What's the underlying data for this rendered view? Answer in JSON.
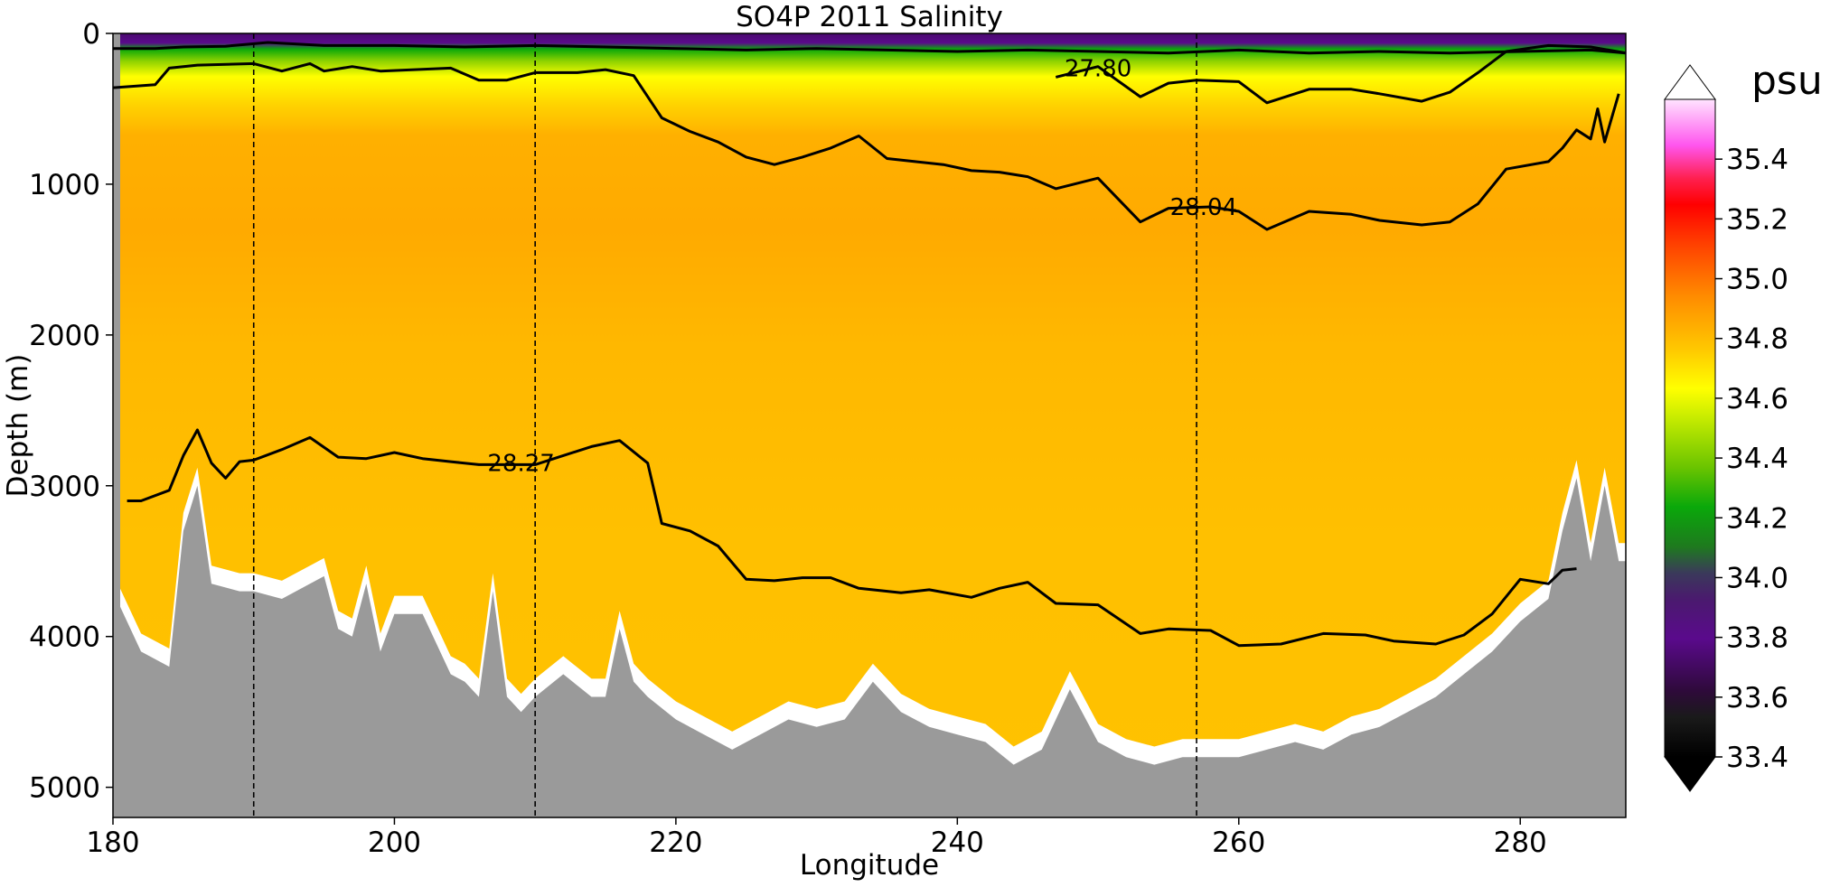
{
  "chart_data": {
    "type": "heatmap",
    "title": "SO4P 2011 Salinity",
    "xlabel": "Longitude",
    "ylabel": "Depth (m)",
    "xlim": [
      180,
      287.5
    ],
    "ylim": [
      5200,
      0
    ],
    "xticks": [
      180,
      200,
      220,
      240,
      260,
      280
    ],
    "yticks": [
      0,
      1000,
      2000,
      3000,
      4000,
      5000
    ],
    "yaxis_inverted": true,
    "variable": "salinity",
    "colorbar": {
      "label": "psu",
      "min": 33.4,
      "max": 35.6,
      "extend": "both",
      "ticks": [
        33.4,
        33.6,
        33.8,
        34.0,
        34.2,
        34.4,
        34.6,
        34.8,
        35.0,
        35.2,
        35.4
      ],
      "tick_labels": [
        "33.4",
        "33.6",
        "33.8",
        "34.0",
        "34.2",
        "34.4",
        "34.6",
        "34.8",
        "35.0",
        "35.2",
        "35.4"
      ],
      "colors": [
        {
          "value": 33.4,
          "color": "#000000"
        },
        {
          "value": 33.6,
          "color": "#2e0a3a"
        },
        {
          "value": 33.8,
          "color": "#5a0a8c"
        },
        {
          "value": 34.0,
          "color": "#3a3a5a"
        },
        {
          "value": 34.2,
          "color": "#0aa80a"
        },
        {
          "value": 34.4,
          "color": "#8cd200"
        },
        {
          "value": 34.6,
          "color": "#ffff00"
        },
        {
          "value": 34.8,
          "color": "#ff8c00"
        },
        {
          "value": 35.0,
          "color": "#ff0000"
        },
        {
          "value": 35.2,
          "color": "#ff1a4a"
        },
        {
          "value": 35.4,
          "color": "#ff66ff"
        },
        {
          "value": 35.6,
          "color": "#ffffff"
        }
      ]
    },
    "section_lines": [
      190,
      210,
      257
    ],
    "contours": [
      {
        "label": "27.80",
        "label_at": [
          250,
          230
        ],
        "points": [
          [
            180,
            100
          ],
          [
            183,
            100
          ],
          [
            185,
            90
          ],
          [
            188,
            85
          ],
          [
            191,
            60
          ],
          [
            195,
            80
          ],
          [
            200,
            80
          ],
          [
            205,
            90
          ],
          [
            210,
            80
          ],
          [
            215,
            90
          ],
          [
            220,
            100
          ],
          [
            225,
            110
          ],
          [
            230,
            100
          ],
          [
            235,
            110
          ],
          [
            240,
            120
          ],
          [
            245,
            110
          ],
          [
            250,
            120
          ],
          [
            255,
            130
          ],
          [
            260,
            110
          ],
          [
            265,
            130
          ],
          [
            270,
            120
          ],
          [
            275,
            130
          ],
          [
            280,
            120
          ],
          [
            285,
            110
          ],
          [
            287.5,
            130
          ]
        ]
      },
      {
        "label": "27.80",
        "label_at": [
          250,
          230
        ],
        "points": [
          [
            180,
            360
          ],
          [
            183,
            340
          ],
          [
            184,
            230
          ],
          [
            186,
            210
          ],
          [
            190,
            200
          ],
          [
            192,
            250
          ],
          [
            194,
            200
          ],
          [
            195,
            250
          ],
          [
            197,
            220
          ],
          [
            199,
            250
          ],
          [
            204,
            230
          ],
          [
            206,
            310
          ],
          [
            208,
            310
          ],
          [
            210,
            260
          ],
          [
            213,
            260
          ],
          [
            215,
            240
          ],
          [
            217,
            280
          ],
          [
            219,
            560
          ],
          [
            221,
            650
          ],
          [
            223,
            720
          ],
          [
            225,
            820
          ],
          [
            227,
            870
          ],
          [
            229,
            820
          ],
          [
            231,
            760
          ],
          [
            233,
            680
          ],
          [
            235,
            830
          ],
          [
            237,
            850
          ],
          [
            239,
            870
          ],
          [
            241,
            910
          ],
          [
            243,
            920
          ],
          [
            245,
            950
          ],
          [
            247,
            1030
          ],
          [
            250,
            960
          ],
          [
            253,
            1250
          ],
          [
            255,
            1160
          ],
          [
            258,
            1150
          ],
          [
            260,
            1180
          ],
          [
            262,
            1300
          ],
          [
            265,
            1180
          ],
          [
            268,
            1200
          ],
          [
            270,
            1240
          ],
          [
            273,
            1270
          ],
          [
            275,
            1250
          ],
          [
            277,
            1130
          ],
          [
            279,
            900
          ],
          [
            282,
            850
          ],
          [
            283,
            760
          ],
          [
            284,
            640
          ],
          [
            285,
            700
          ],
          [
            285.5,
            500
          ],
          [
            286,
            720
          ],
          [
            287,
            400
          ]
        ]
      },
      {
        "label": "28.04",
        "label_at": [
          257.5,
          1150
        ],
        "points": [
          [
            247,
            290
          ],
          [
            250,
            220
          ],
          [
            253,
            420
          ],
          [
            255,
            330
          ],
          [
            257,
            310
          ],
          [
            260,
            320
          ],
          [
            262,
            460
          ],
          [
            265,
            370
          ],
          [
            268,
            370
          ],
          [
            270,
            400
          ],
          [
            273,
            450
          ],
          [
            275,
            390
          ],
          [
            277,
            260
          ],
          [
            279,
            120
          ],
          [
            282,
            80
          ],
          [
            285,
            90
          ],
          [
            287.5,
            130
          ]
        ]
      },
      {
        "label": "28.27",
        "label_at": [
          209,
          2850
        ],
        "points": [
          [
            181,
            3100
          ],
          [
            182,
            3100
          ],
          [
            184,
            3030
          ],
          [
            185,
            2800
          ],
          [
            186,
            2630
          ],
          [
            187,
            2850
          ],
          [
            188,
            2950
          ],
          [
            189,
            2840
          ],
          [
            190,
            2830
          ],
          [
            192,
            2760
          ],
          [
            194,
            2680
          ],
          [
            196,
            2810
          ],
          [
            198,
            2820
          ],
          [
            200,
            2780
          ],
          [
            202,
            2820
          ],
          [
            204,
            2840
          ],
          [
            206,
            2860
          ],
          [
            210,
            2860
          ],
          [
            214,
            2740
          ],
          [
            216,
            2700
          ],
          [
            218,
            2850
          ],
          [
            219,
            3250
          ],
          [
            221,
            3300
          ],
          [
            223,
            3400
          ],
          [
            225,
            3620
          ],
          [
            227,
            3630
          ],
          [
            229,
            3610
          ],
          [
            231,
            3610
          ],
          [
            233,
            3680
          ],
          [
            236,
            3710
          ],
          [
            238,
            3690
          ],
          [
            241,
            3740
          ],
          [
            243,
            3680
          ],
          [
            245,
            3640
          ],
          [
            247,
            3780
          ],
          [
            250,
            3790
          ],
          [
            253,
            3980
          ],
          [
            255,
            3950
          ],
          [
            258,
            3960
          ],
          [
            260,
            4060
          ],
          [
            263,
            4050
          ],
          [
            266,
            3980
          ],
          [
            269,
            3990
          ],
          [
            271,
            4030
          ],
          [
            274,
            4050
          ],
          [
            276,
            3990
          ],
          [
            278,
            3850
          ],
          [
            280,
            3620
          ],
          [
            282,
            3650
          ],
          [
            283,
            3560
          ],
          [
            284,
            3550
          ]
        ]
      }
    ],
    "contour_labels": [
      "27.80",
      "28.04",
      "28.27"
    ],
    "bathymetry": [
      [
        180,
        3700
      ],
      [
        182,
        4100
      ],
      [
        184,
        4200
      ],
      [
        185,
        3300
      ],
      [
        186,
        3000
      ],
      [
        187,
        3650
      ],
      [
        189,
        3700
      ],
      [
        190,
        3700
      ],
      [
        192,
        3750
      ],
      [
        194,
        3650
      ],
      [
        195,
        3600
      ],
      [
        196,
        3950
      ],
      [
        197,
        4000
      ],
      [
        198,
        3650
      ],
      [
        199,
        4100
      ],
      [
        200,
        3850
      ],
      [
        202,
        3850
      ],
      [
        204,
        4250
      ],
      [
        205,
        4300
      ],
      [
        206,
        4400
      ],
      [
        207,
        3700
      ],
      [
        208,
        4400
      ],
      [
        209,
        4500
      ],
      [
        210,
        4400
      ],
      [
        212,
        4250
      ],
      [
        214,
        4400
      ],
      [
        215,
        4400
      ],
      [
        216,
        3950
      ],
      [
        217,
        4300
      ],
      [
        218,
        4400
      ],
      [
        220,
        4550
      ],
      [
        222,
        4650
      ],
      [
        224,
        4750
      ],
      [
        226,
        4650
      ],
      [
        228,
        4550
      ],
      [
        230,
        4600
      ],
      [
        232,
        4550
      ],
      [
        234,
        4300
      ],
      [
        236,
        4500
      ],
      [
        238,
        4600
      ],
      [
        240,
        4650
      ],
      [
        242,
        4700
      ],
      [
        244,
        4850
      ],
      [
        246,
        4750
      ],
      [
        248,
        4350
      ],
      [
        250,
        4700
      ],
      [
        252,
        4800
      ],
      [
        254,
        4850
      ],
      [
        256,
        4800
      ],
      [
        258,
        4800
      ],
      [
        260,
        4800
      ],
      [
        262,
        4750
      ],
      [
        264,
        4700
      ],
      [
        266,
        4750
      ],
      [
        268,
        4650
      ],
      [
        270,
        4600
      ],
      [
        272,
        4500
      ],
      [
        274,
        4400
      ],
      [
        276,
        4250
      ],
      [
        278,
        4100
      ],
      [
        280,
        3900
      ],
      [
        282,
        3750
      ],
      [
        283,
        3300
      ],
      [
        284,
        2950
      ],
      [
        285,
        3500
      ],
      [
        286,
        3000
      ],
      [
        287,
        3500
      ],
      [
        287.5,
        3500
      ]
    ]
  }
}
